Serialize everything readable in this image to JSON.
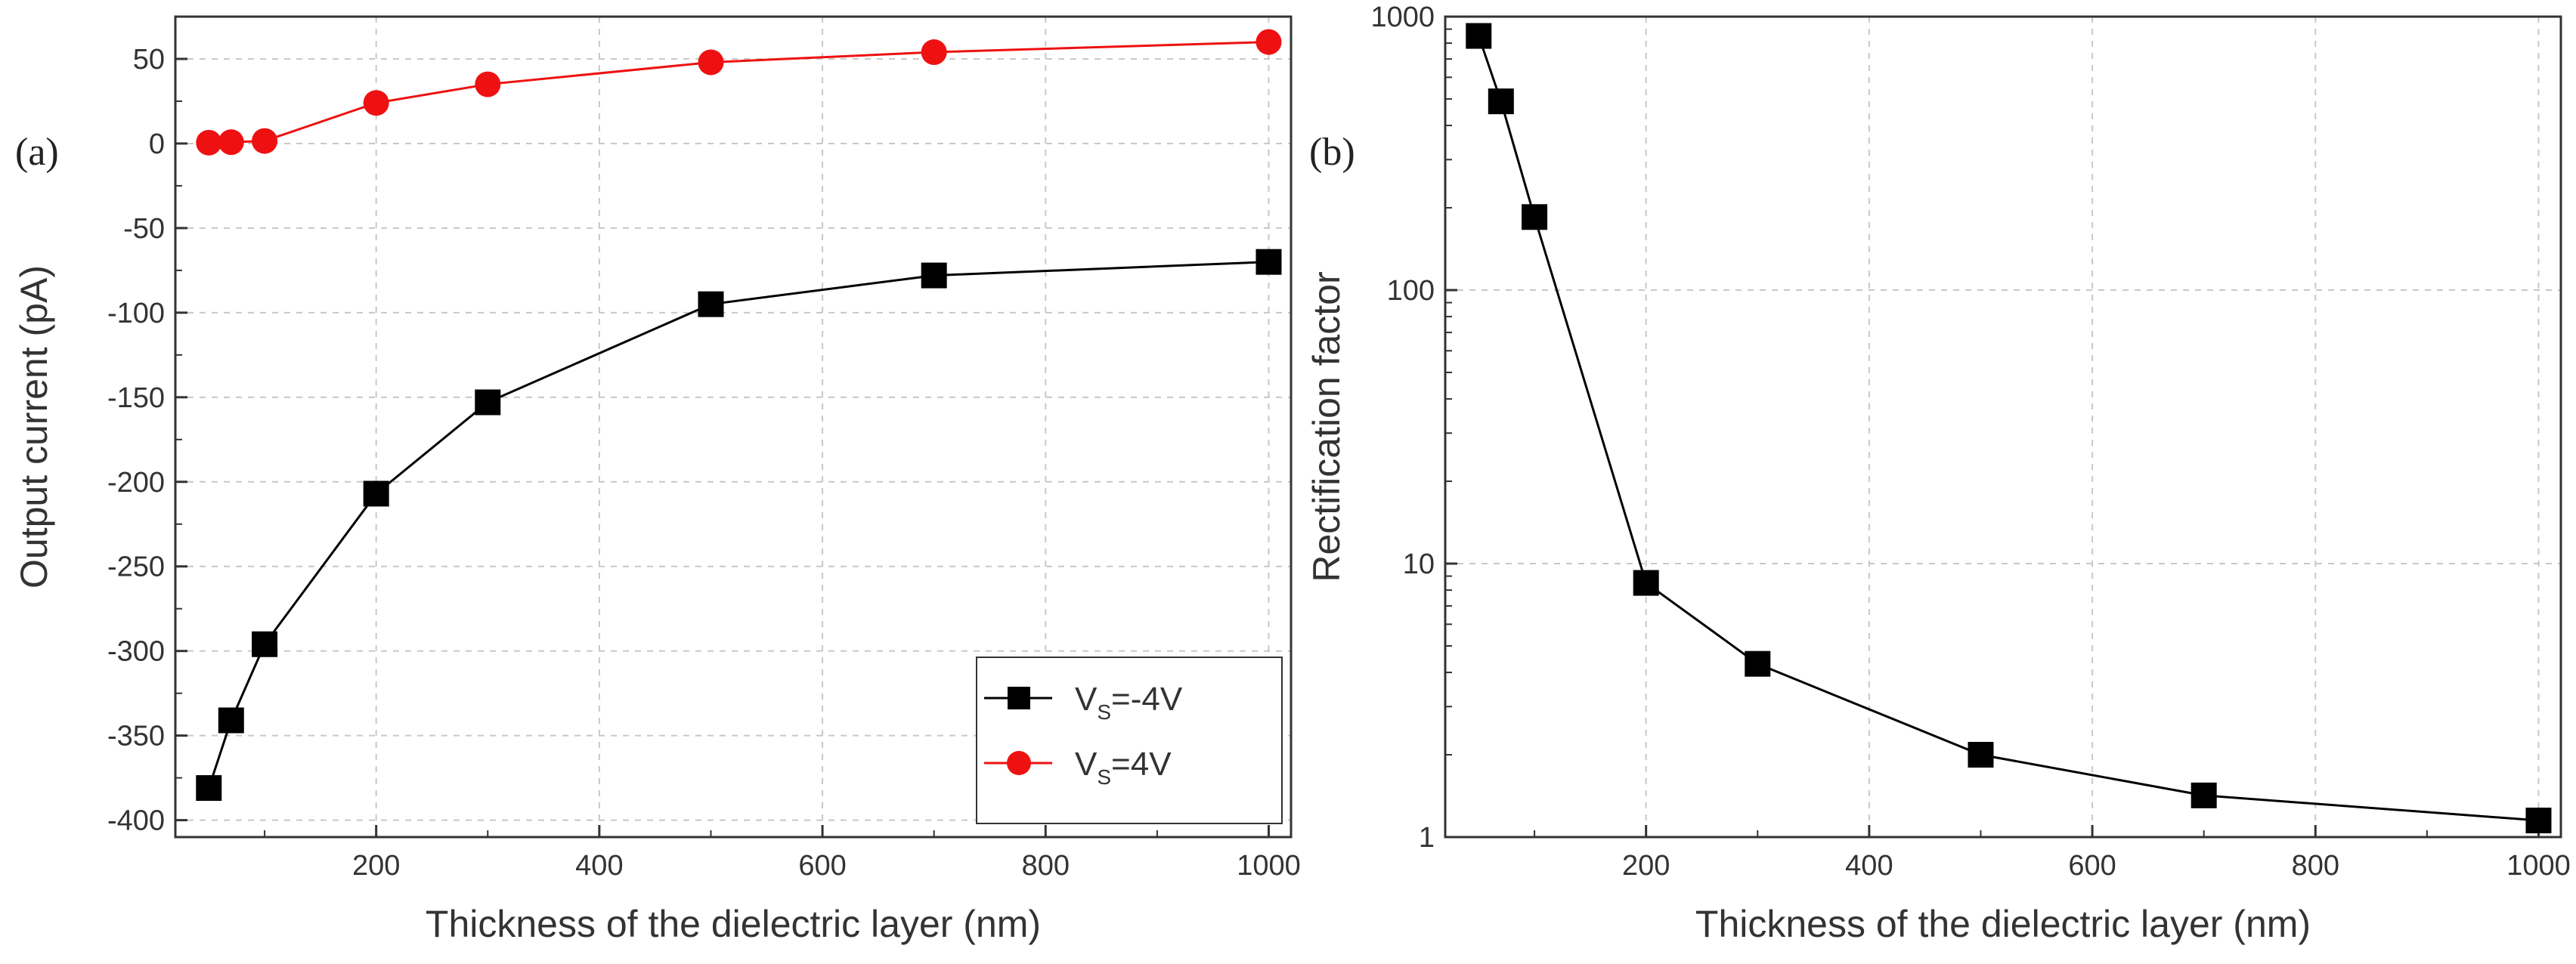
{
  "chart_data": [
    {
      "type": "line",
      "panel_label": "(a)",
      "title": "",
      "xlabel": "Thickness of the dielectric layer (nm)",
      "ylabel": "Output current (pA)",
      "xlim": [
        20,
        1020
      ],
      "ylim": [
        -410,
        75
      ],
      "xticks": [
        200,
        400,
        600,
        800,
        1000
      ],
      "yticks": [
        -400,
        -350,
        -300,
        -250,
        -200,
        -150,
        -100,
        -50,
        0,
        50
      ],
      "xtick_labels": [
        "200",
        "400",
        "600",
        "800",
        "1000"
      ],
      "ytick_labels": [
        "-400",
        "-350",
        "-300",
        "-250",
        "-200",
        "-150",
        "-100",
        "-50",
        "0",
        "50"
      ],
      "grid": true,
      "legend_position": "bottom-right",
      "series": [
        {
          "name": "V_S=-4V",
          "legend_main": "V",
          "legend_sub": "S",
          "legend_rest": "=-4V",
          "color": "#000000",
          "marker": "square",
          "x": [
            50,
            70,
            100,
            200,
            300,
            500,
            700,
            1000
          ],
          "y": [
            -381,
            -341,
            -296,
            -207,
            -153,
            -95,
            -78,
            -70
          ]
        },
        {
          "name": "V_S=4V",
          "legend_main": "V",
          "legend_sub": "S",
          "legend_rest": "=4V",
          "color": "#ee1111",
          "marker": "circle",
          "x": [
            50,
            70,
            100,
            200,
            300,
            500,
            700,
            1000
          ],
          "y": [
            0.5,
            0.8,
            1.5,
            24,
            35,
            48,
            54,
            60
          ]
        }
      ]
    },
    {
      "type": "line",
      "panel_label": "(b)",
      "title": "",
      "xlabel": "Thickness of the dielectric layer (nm)",
      "ylabel": "Rectification factor",
      "yscale": "log",
      "xlim": [
        20,
        1020
      ],
      "ylim": [
        1,
        1000
      ],
      "xticks": [
        200,
        400,
        600,
        800,
        1000
      ],
      "yticks": [
        1,
        10,
        100,
        1000
      ],
      "xtick_labels": [
        "200",
        "400",
        "600",
        "800",
        "1000"
      ],
      "ytick_labels": [
        "1",
        "10",
        "100",
        "1000"
      ],
      "grid": true,
      "legend_position": "none",
      "series": [
        {
          "name": "Rectification factor",
          "color": "#000000",
          "marker": "square",
          "x": [
            50,
            70,
            100,
            200,
            300,
            500,
            700,
            1000
          ],
          "y": [
            850,
            490,
            185,
            8.5,
            4.3,
            2.0,
            1.42,
            1.15
          ]
        }
      ]
    }
  ]
}
